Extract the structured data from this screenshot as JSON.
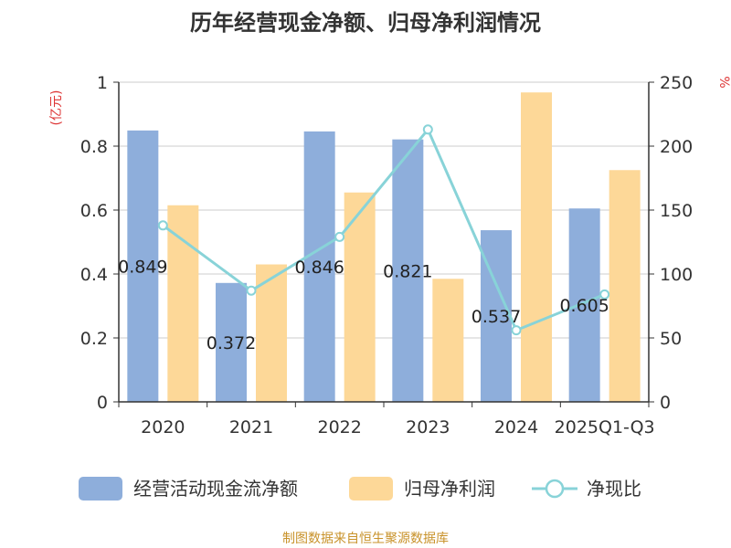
{
  "chart_data": {
    "type": "bar",
    "title": "历年经营现金净额、归母净利润情况",
    "categories": [
      "2020",
      "2021",
      "2022",
      "2023",
      "2024",
      "2025Q1-Q3"
    ],
    "ylabel_left": "(亿元)",
    "ylabel_right": "%",
    "ylim_left": [
      0,
      1
    ],
    "yticks_left": [
      "0",
      "0.2",
      "0.4",
      "0.6",
      "0.8",
      "1"
    ],
    "ylim_right": [
      0,
      250
    ],
    "yticks_right": [
      "0",
      "50",
      "100",
      "150",
      "200",
      "250"
    ],
    "grid": true,
    "legend_position": "bottom",
    "series": [
      {
        "name": "经营活动现金流净额",
        "type": "bar",
        "axis": "left",
        "color": "#8eaedb",
        "values": [
          0.849,
          0.372,
          0.846,
          0.821,
          0.537,
          0.605
        ],
        "labels": [
          "0.849",
          "0.372",
          "0.846",
          "0.821",
          "0.537",
          "0.605"
        ]
      },
      {
        "name": "归母净利润",
        "type": "bar",
        "axis": "left",
        "color": "#fdd898",
        "values": [
          0.615,
          0.43,
          0.655,
          0.385,
          0.968,
          0.725
        ]
      },
      {
        "name": "净现比",
        "type": "line",
        "axis": "right",
        "color": "#88d3d8",
        "values": [
          138,
          87,
          129,
          213,
          56,
          84
        ]
      }
    ]
  },
  "source": "制图数据来自恒生聚源数据库"
}
